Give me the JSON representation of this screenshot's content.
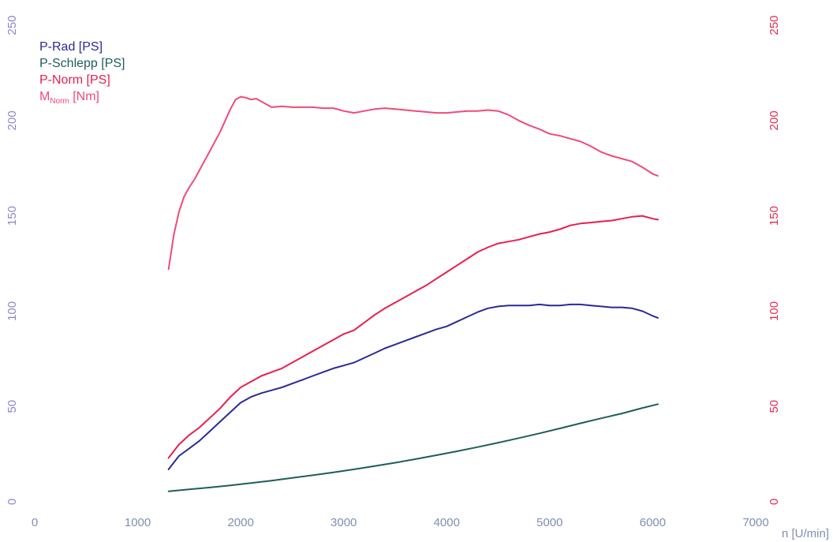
{
  "chart_data": {
    "type": "line",
    "title": "",
    "xlabel": "n [U/min]",
    "ylabel": "",
    "ylabel_right": "",
    "xlim": [
      0,
      7000
    ],
    "ylim": [
      0,
      250
    ],
    "ylim_right": [
      0,
      250
    ],
    "grid": false,
    "legend_position": "top-left",
    "x_ticks": [
      "0",
      "1000",
      "2000",
      "3000",
      "4000",
      "5000",
      "6000",
      "7000"
    ],
    "y_ticks_left": [
      "0",
      "50",
      "100",
      "150",
      "200",
      "250"
    ],
    "y_ticks_right": [
      "0",
      "50",
      "100",
      "150",
      "200",
      "250"
    ],
    "series": [
      {
        "name": "P-Rad [PS]",
        "name_main": "P-Rad [PS]",
        "name_sub": "",
        "name_suffix": "",
        "color": "#2b2a96",
        "x": [
          1300,
          1400,
          1500,
          1600,
          1700,
          1800,
          1900,
          2000,
          2100,
          2200,
          2300,
          2400,
          2500,
          2600,
          2700,
          2800,
          2900,
          3000,
          3100,
          3200,
          3300,
          3400,
          3500,
          3600,
          3700,
          3800,
          3900,
          4000,
          4100,
          4200,
          4300,
          4400,
          4500,
          4600,
          4700,
          4800,
          4900,
          5000,
          5100,
          5200,
          5300,
          5400,
          5500,
          5600,
          5700,
          5800,
          5900,
          6000,
          6050
        ],
        "y": [
          17,
          24,
          28,
          32,
          37,
          42,
          47,
          52,
          55,
          57,
          58.5,
          60,
          62,
          64,
          66,
          68,
          70,
          71.5,
          73,
          75.5,
          78,
          80.5,
          82.5,
          84.5,
          86.5,
          88.5,
          90.5,
          92,
          94.5,
          97,
          99.5,
          101.5,
          102.5,
          103,
          103,
          103,
          103.5,
          103,
          103,
          103.5,
          103.5,
          103,
          102.5,
          102,
          102,
          101.5,
          100,
          97.5,
          96.5
        ]
      },
      {
        "name": "P-Schlepp [PS]",
        "name_main": "P-Schlepp [PS]",
        "name_sub": "",
        "name_suffix": "",
        "color": "#1e5e58",
        "x": [
          1300,
          1500,
          1700,
          1900,
          2100,
          2300,
          2500,
          2700,
          2900,
          3100,
          3300,
          3500,
          3700,
          3900,
          4100,
          4300,
          4500,
          4700,
          4900,
          5100,
          5300,
          5500,
          5700,
          5900,
          6050
        ],
        "y": [
          5.5,
          6.5,
          7.5,
          8.6,
          9.8,
          11.1,
          12.5,
          13.9,
          15.4,
          17.0,
          18.7,
          20.5,
          22.4,
          24.4,
          26.5,
          28.7,
          31.0,
          33.4,
          35.9,
          38.5,
          41.2,
          43.8,
          46.3,
          49.2,
          51.2
        ]
      },
      {
        "name": "P-Norm [PS]",
        "name_main": "P-Norm [PS]",
        "name_sub": "",
        "name_suffix": "",
        "color": "#e81e4f",
        "x": [
          1300,
          1400,
          1500,
          1600,
          1700,
          1800,
          1900,
          2000,
          2100,
          2200,
          2300,
          2400,
          2500,
          2600,
          2700,
          2800,
          2900,
          3000,
          3100,
          3200,
          3300,
          3400,
          3500,
          3600,
          3700,
          3800,
          3900,
          4000,
          4100,
          4200,
          4300,
          4400,
          4500,
          4600,
          4700,
          4800,
          4900,
          5000,
          5100,
          5200,
          5300,
          5400,
          5500,
          5600,
          5700,
          5800,
          5900,
          6000,
          6050
        ],
        "y": [
          23,
          30,
          35,
          39,
          44,
          49,
          55,
          60,
          63,
          66,
          68,
          70,
          73,
          76,
          79,
          82,
          85,
          88,
          90,
          94,
          98,
          101.5,
          104.5,
          107.5,
          110.5,
          113.5,
          117,
          120.5,
          124,
          127.5,
          131,
          133.5,
          135.5,
          136.5,
          137.5,
          139,
          140.5,
          141.5,
          143,
          145,
          146,
          146.5,
          147,
          147.5,
          148.5,
          149.5,
          150,
          148.5,
          148
        ]
      },
      {
        "name": "MNorm [Nm]",
        "name_main": "M",
        "name_sub": "Norm",
        "name_suffix": " [Nm]",
        "color": "#f04a78",
        "x": [
          1300,
          1350,
          1400,
          1450,
          1500,
          1550,
          1600,
          1700,
          1800,
          1900,
          1950,
          2000,
          2050,
          2100,
          2150,
          2200,
          2300,
          2400,
          2500,
          2600,
          2700,
          2800,
          2900,
          3000,
          3100,
          3200,
          3300,
          3400,
          3500,
          3600,
          3700,
          3800,
          3900,
          4000,
          4100,
          4200,
          4300,
          4400,
          4500,
          4600,
          4700,
          4800,
          4900,
          5000,
          5100,
          5200,
          5300,
          5400,
          5500,
          5600,
          5700,
          5800,
          5900,
          6000,
          6050
        ],
        "y": [
          122,
          140,
          152,
          160,
          165,
          169,
          174,
          184,
          194,
          206,
          211,
          212.5,
          212,
          211,
          211.5,
          210,
          207,
          207.5,
          207,
          207,
          207,
          206.5,
          206.5,
          205,
          204,
          205,
          206,
          206.5,
          206,
          205.5,
          205,
          204.5,
          204,
          204,
          204.5,
          205,
          205,
          205.5,
          205,
          203,
          200,
          197.5,
          195.5,
          193,
          192,
          190.5,
          189,
          186.5,
          183.5,
          181.5,
          180,
          178.5,
          175.5,
          172,
          171
        ]
      }
    ]
  }
}
